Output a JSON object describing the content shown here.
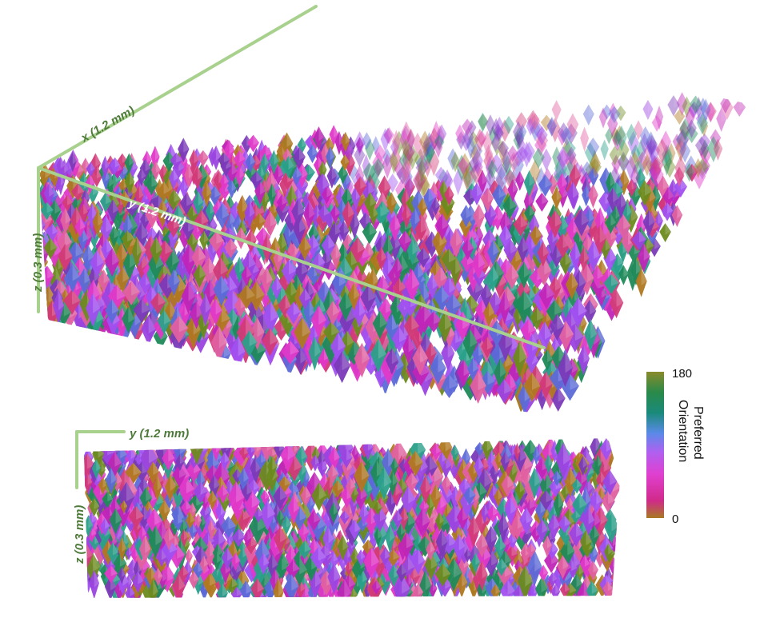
{
  "volume_top": {
    "x_axis_label": "x (1.2 mm)",
    "y_axis_label": "y (1.2 mm)",
    "z_axis_label": "z (0.3 mm)"
  },
  "volume_side": {
    "y_axis_label": "y (1.2 mm)",
    "z_axis_label": "z (0.3 mm)"
  },
  "colorbar": {
    "title_line1": "Preferred",
    "title_line2": "Orientation",
    "max_label": "180",
    "min_label": "0",
    "stops": [
      "#a87a22",
      "#d02a8a",
      "#e040d0",
      "#b060f0",
      "#5a8ae8",
      "#1a8a7a",
      "#2a8a4a",
      "#8a8a2a"
    ]
  },
  "colors": {
    "axis_line": "#a9d18e",
    "axis_label_top": "#4e7a3a",
    "axis_label_white": "#ffffff",
    "cell_palette": [
      "#c025b8",
      "#9b45e0",
      "#e038c8",
      "#1f8a5a",
      "#6b8a1e",
      "#b07820",
      "#d23a78",
      "#5c6ad8",
      "#2aa08a",
      "#a050f0",
      "#e060a0",
      "#7a3ab8"
    ]
  }
}
